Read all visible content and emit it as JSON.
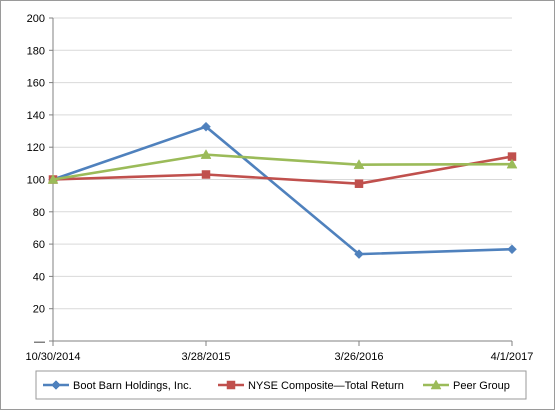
{
  "chart_data": {
    "type": "line",
    "title": "",
    "xlabel": "",
    "ylabel": "",
    "categories": [
      "10/30/2014",
      "3/28/2015",
      "3/26/2016",
      "4/1/2017"
    ],
    "ylim": [
      0,
      200
    ],
    "y_ticks": [
      0,
      20,
      40,
      60,
      80,
      100,
      120,
      140,
      160,
      180,
      200
    ],
    "zero_tick_label": "—",
    "grid": true,
    "legend_position": "bottom",
    "series": [
      {
        "name": "Boot Barn Holdings, Inc.",
        "values": [
          100,
          132.7,
          53.8,
          56.8
        ],
        "color": "#4f81bd",
        "marker": "diamond"
      },
      {
        "name": "NYSE Composite—Total Return",
        "values": [
          100,
          103.1,
          97.4,
          114.2
        ],
        "color": "#c0504d",
        "marker": "square"
      },
      {
        "name": "Peer Group",
        "values": [
          100,
          115.4,
          109.2,
          109.5
        ],
        "color": "#9bbb59",
        "marker": "triangle"
      }
    ]
  }
}
